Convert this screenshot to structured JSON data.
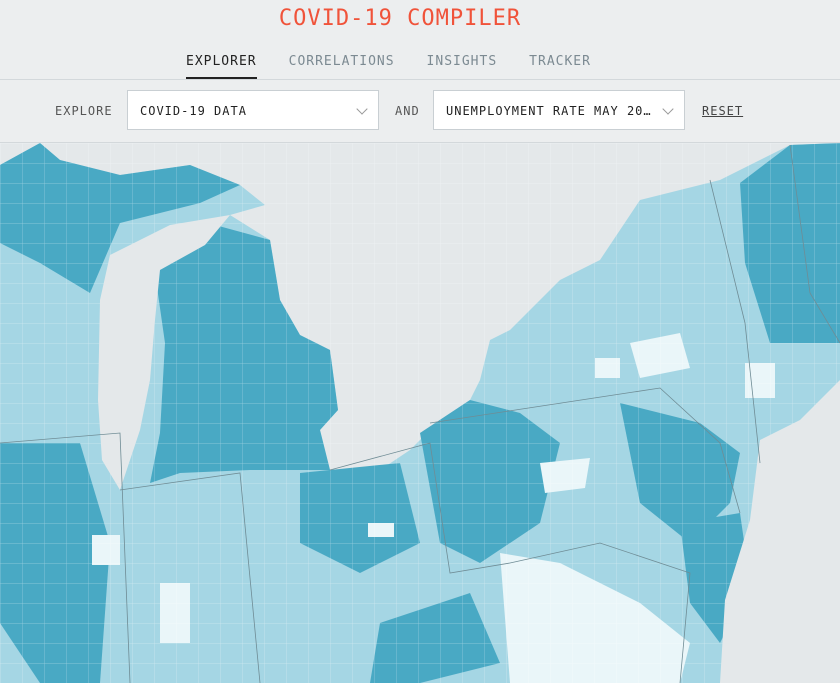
{
  "header": {
    "title": "COVID-19 COMPILER"
  },
  "tabs": [
    {
      "label": "EXPLORER"
    },
    {
      "label": "CORRELATIONS"
    },
    {
      "label": "INSIGHTS"
    },
    {
      "label": "TRACKER"
    }
  ],
  "controls": {
    "explore_label": "EXPLORE",
    "dropdown_1": "COVID-19 DATA",
    "conjunction": "AND",
    "dropdown_2": "UNEMPLOYMENT RATE MAY 20…",
    "reset": "RESET"
  }
}
